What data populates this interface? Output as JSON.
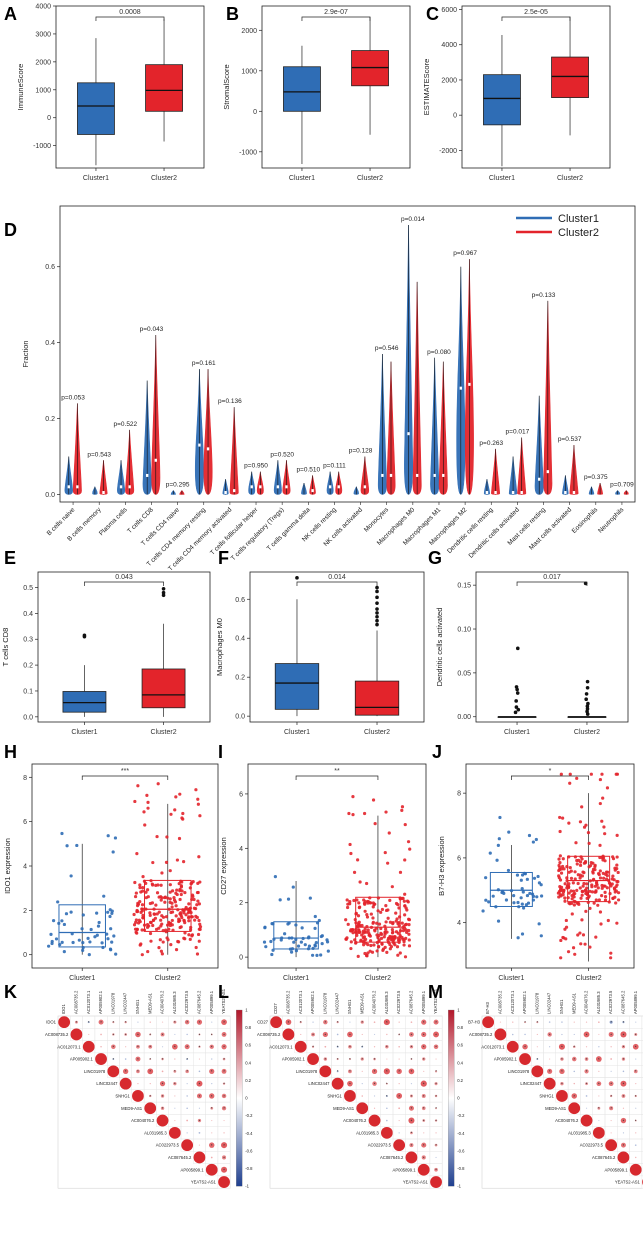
{
  "colors": {
    "cluster1": "#2f6db5",
    "cluster2": "#e3242b",
    "neg": "#2c4fa0",
    "pos": "#d7292e"
  },
  "chart_data": [
    {
      "panel": "A",
      "type": "box",
      "ylabel": "ImmuneScore",
      "ylim": [
        -1800,
        4000
      ],
      "yticks": [
        -1000,
        0,
        1000,
        2000,
        3000,
        4000
      ],
      "yticklabels": [
        "-1000",
        "0",
        "1000",
        "2000",
        "3000",
        "4000"
      ],
      "categories": [
        "Cluster1",
        "Cluster2"
      ],
      "pvalue": "0.0008",
      "boxes": [
        {
          "min": -1700,
          "q1": -600,
          "median": 420,
          "q3": 1250,
          "max": 2850
        },
        {
          "min": -850,
          "q1": 230,
          "median": 980,
          "q3": 1900,
          "max": 3550
        }
      ]
    },
    {
      "panel": "B",
      "type": "box",
      "ylabel": "StromalScore",
      "ylim": [
        -1400,
        2600
      ],
      "yticks": [
        -1000,
        0,
        1000,
        2000
      ],
      "yticklabels": [
        "-1000",
        "0",
        "1000",
        "2000"
      ],
      "categories": [
        "Cluster1",
        "Cluster2"
      ],
      "pvalue": "2.9e-07",
      "boxes": [
        {
          "min": -1300,
          "q1": 0,
          "median": 480,
          "q3": 1100,
          "max": 1620
        },
        {
          "min": -580,
          "q1": 630,
          "median": 1080,
          "q3": 1500,
          "max": 2330
        }
      ]
    },
    {
      "panel": "C",
      "type": "box",
      "ylabel": "ESTIMATEScore",
      "ylim": [
        -3000,
        6200
      ],
      "yticks": [
        -2000,
        0,
        2000,
        4000,
        6000
      ],
      "yticklabels": [
        "-2000",
        "0",
        "2000",
        "4000",
        "6000"
      ],
      "categories": [
        "Cluster1",
        "Cluster2"
      ],
      "pvalue": "2.5e-05",
      "boxes": [
        {
          "min": -2900,
          "q1": -550,
          "median": 950,
          "q3": 2300,
          "max": 4550
        },
        {
          "min": -1150,
          "q1": 1000,
          "median": 2200,
          "q3": 3300,
          "max": 5600
        }
      ]
    },
    {
      "panel": "D",
      "type": "violin",
      "ylabel": "Fraction",
      "ylim": [
        -0.02,
        0.76
      ],
      "yticks": [
        0,
        0.2,
        0.4,
        0.6
      ],
      "yticklabels": [
        "0.0",
        "0.2",
        "0.4",
        "0.6"
      ],
      "legend": [
        "Cluster1",
        "Cluster2"
      ],
      "categories": [
        "B cells naive",
        "B cells memory",
        "Plasma cells",
        "T cells CD8",
        "T cells CD4 naive",
        "T cells CD4 memory resting",
        "T cells CD4 memory activated",
        "T cells follicular helper",
        "T cells regulatory (Tregs)",
        "T cells gamma delta",
        "NK cells resting",
        "NK cells activated",
        "Monocytes",
        "Macrophages M0",
        "Macrophages M1",
        "Macrophages M2",
        "Dendritic cells resting",
        "Dendritic cells activated",
        "Mast cells resting",
        "Mast cells activated",
        "Eosinophils",
        "Neutrophils"
      ],
      "pvalues": [
        "p=0.053",
        "p=0.543",
        "p=0.522",
        "p=0.043",
        "p=0.295",
        "p=0.161",
        "p=0.136",
        "p=0.950",
        "p=0.520",
        "p=0.510",
        "p=0.111",
        "p=0.128",
        "p=0.546",
        "p=0.014",
        "p=0.080",
        "p=0.967",
        "p=0.263",
        "p=0.017",
        "p=0.133",
        "p=0.537",
        "p=0.375",
        "p=0.709"
      ],
      "max1": [
        0.1,
        0.02,
        0.09,
        0.3,
        0.01,
        0.33,
        0.04,
        0.06,
        0.09,
        0.03,
        0.06,
        0.02,
        0.37,
        0.71,
        0.36,
        0.6,
        0.04,
        0.1,
        0.26,
        0.05,
        0.02,
        0.01
      ],
      "max2": [
        0.24,
        0.09,
        0.17,
        0.42,
        0.01,
        0.33,
        0.23,
        0.06,
        0.09,
        0.05,
        0.06,
        0.1,
        0.35,
        0.56,
        0.35,
        0.62,
        0.12,
        0.15,
        0.51,
        0.13,
        0.03,
        0.01
      ],
      "med1": [
        0.02,
        0.005,
        0.02,
        0.05,
        0.0,
        0.13,
        0.005,
        0.02,
        0.02,
        0.005,
        0.02,
        0.005,
        0.05,
        0.16,
        0.05,
        0.28,
        0.005,
        0.005,
        0.04,
        0.005,
        0.002,
        0.002
      ],
      "med2": [
        0.02,
        0.005,
        0.02,
        0.09,
        0.0,
        0.12,
        0.01,
        0.02,
        0.02,
        0.01,
        0.02,
        0.02,
        0.05,
        0.05,
        0.05,
        0.29,
        0.005,
        0.005,
        0.06,
        0.005,
        0.002,
        0.002
      ]
    },
    {
      "panel": "E",
      "type": "box",
      "ylabel": "T cells CD8",
      "ylim": [
        -0.02,
        0.56
      ],
      "yticks": [
        0,
        0.1,
        0.2,
        0.3,
        0.4,
        0.5
      ],
      "yticklabels": [
        "0.0",
        "0.1",
        "0.2",
        "0.3",
        "0.4",
        "0.5"
      ],
      "categories": [
        "Cluster1",
        "Cluster2"
      ],
      "pvalue": "0.043",
      "boxes": [
        {
          "min": 0,
          "q1": 0.018,
          "median": 0.055,
          "q3": 0.098,
          "max": 0.2,
          "outliers": [
            0.31,
            0.315
          ]
        },
        {
          "min": 0,
          "q1": 0.035,
          "median": 0.085,
          "q3": 0.185,
          "max": 0.36,
          "outliers": [
            0.47,
            0.48,
            0.495
          ]
        }
      ]
    },
    {
      "panel": "F",
      "type": "box",
      "ylabel": "Macrophages M0",
      "ylim": [
        -0.03,
        0.74
      ],
      "yticks": [
        0,
        0.2,
        0.4,
        0.6
      ],
      "yticklabels": [
        "0.0",
        "0.2",
        "0.4",
        "0.6"
      ],
      "categories": [
        "Cluster1",
        "Cluster2"
      ],
      "pvalue": "0.014",
      "boxes": [
        {
          "min": 0,
          "q1": 0.035,
          "median": 0.17,
          "q3": 0.27,
          "max": 0.6,
          "outliers": [
            0.71
          ]
        },
        {
          "min": 0,
          "q1": 0.005,
          "median": 0.045,
          "q3": 0.18,
          "max": 0.44,
          "outliers": [
            0.47,
            0.49,
            0.51,
            0.53,
            0.55,
            0.58,
            0.61,
            0.64,
            0.66
          ]
        }
      ]
    },
    {
      "panel": "G",
      "type": "box",
      "ylabel": "Dendritic cells activated",
      "ylim": [
        -0.006,
        0.165
      ],
      "yticks": [
        0,
        0.05,
        0.1,
        0.15
      ],
      "yticklabels": [
        "0.00",
        "0.05",
        "0.10",
        "0.15"
      ],
      "categories": [
        "Cluster1",
        "Cluster2"
      ],
      "pvalue": "0.017",
      "boxes": [
        {
          "min": 0,
          "q1": 0,
          "median": 0,
          "q3": 0,
          "max": 0,
          "outliers": [
            0.005,
            0.008,
            0.011,
            0.018,
            0.027,
            0.031,
            0.034,
            0.078
          ]
        },
        {
          "min": 0,
          "q1": 0,
          "median": 0,
          "q3": 0,
          "max": 0,
          "outliers": [
            0.003,
            0.006,
            0.009,
            0.012,
            0.015,
            0.02,
            0.026,
            0.033,
            0.04,
            0.152
          ]
        }
      ]
    },
    {
      "panel": "H",
      "type": "box-jitter",
      "ylabel": "IDO1 expression",
      "ylim": [
        -0.6,
        8.6
      ],
      "yticks": [
        0,
        2,
        4,
        6,
        8
      ],
      "yticklabels": [
        "0",
        "2",
        "4",
        "6",
        "8"
      ],
      "categories": [
        "Cluster1",
        "Cluster2"
      ],
      "pvalue": "***",
      "boxes": [
        {
          "min": 0,
          "q1": 0.35,
          "median": 1.0,
          "q3": 2.25,
          "max": 5.0,
          "n": 55
        },
        {
          "min": 0,
          "q1": 1.05,
          "median": 2.05,
          "q3": 3.35,
          "max": 6.8,
          "n": 250
        }
      ]
    },
    {
      "panel": "I",
      "type": "box-jitter",
      "ylabel": "CD27 expression",
      "ylim": [
        -0.4,
        7.1
      ],
      "yticks": [
        0,
        2,
        4,
        6
      ],
      "yticklabels": [
        "0",
        "2",
        "4",
        "6"
      ],
      "categories": [
        "Cluster1",
        "Cluster2"
      ],
      "pvalue": "**",
      "boxes": [
        {
          "min": 0,
          "q1": 0.3,
          "median": 0.7,
          "q3": 1.3,
          "max": 2.8,
          "n": 55
        },
        {
          "min": 0,
          "q1": 0.55,
          "median": 1.1,
          "q3": 2.2,
          "max": 5.2,
          "n": 250
        }
      ]
    },
    {
      "panel": "J",
      "type": "box-jitter",
      "ylabel": "B7-H3 expression",
      "ylim": [
        2.6,
        8.9
      ],
      "yticks": [
        4,
        6,
        8
      ],
      "yticklabels": [
        "4",
        "6",
        "8"
      ],
      "categories": [
        "Cluster1",
        "Cluster2"
      ],
      "pvalue": "*",
      "boxes": [
        {
          "min": 3.5,
          "q1": 4.5,
          "median": 5.0,
          "q3": 5.55,
          "max": 6.4,
          "n": 55
        },
        {
          "min": 2.8,
          "q1": 4.65,
          "median": 5.3,
          "q3": 6.05,
          "max": 8.0,
          "n": 250
        }
      ]
    },
    {
      "panel": "K",
      "type": "corrplot",
      "first": "IDO1",
      "genes": [
        "AC008735.2",
        "AC012073.1",
        "AP005902.1",
        "LINC01978",
        "LINC02447",
        "SNHG1",
        "MED9-AS1",
        "AC004076.2",
        "AL031985.3",
        "AC022973.5",
        "AC087645.2",
        "AP005899.1",
        "YEATS2-AS1"
      ],
      "scale": [
        "1",
        "0.8",
        "0.6",
        "0.4",
        "0.2",
        "0",
        "-0.2",
        "-0.4",
        "-0.6",
        "-0.8",
        "-1"
      ]
    },
    {
      "panel": "L",
      "type": "corrplot",
      "first": "CD27",
      "genes": [
        "AC008735.2",
        "AC012073.1",
        "AP005902.1",
        "LINC01978",
        "LINC02447",
        "SNHG1",
        "MED9-AS1",
        "AC004076.2",
        "AL031985.3",
        "AC022973.5",
        "AC087645.2",
        "AP005899.1",
        "YEATS2-AS1"
      ],
      "scale": [
        "1",
        "0.8",
        "0.6",
        "0.4",
        "0.2",
        "0",
        "-0.2",
        "-0.4",
        "-0.6",
        "-0.8",
        "-1"
      ]
    },
    {
      "panel": "M",
      "type": "corrplot",
      "first": "B7-H3",
      "genes": [
        "AC008735.2",
        "AC012073.1",
        "AP005902.1",
        "LINC01978",
        "LINC02447",
        "SNHG1",
        "MED9-AS1",
        "AC004076.2",
        "AL031985.3",
        "AC022973.5",
        "AC087645.2",
        "AP005899.1",
        "YEATS2-AS1"
      ],
      "scale": [
        "1",
        "0.8",
        "0.6",
        "0.4",
        "0.2",
        "0",
        "-0.2",
        "-0.4",
        "-0.6",
        "-0.8",
        "-1"
      ]
    }
  ]
}
